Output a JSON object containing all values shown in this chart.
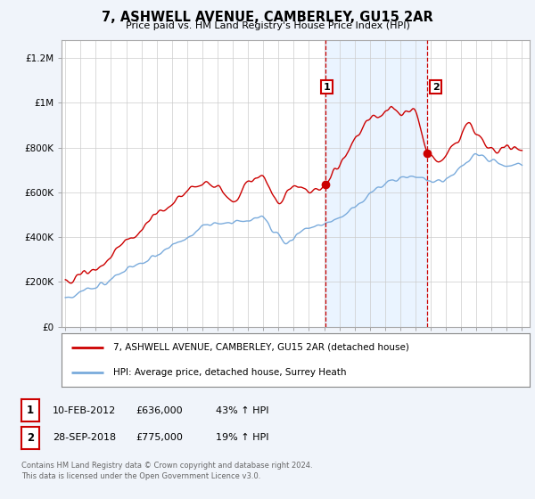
{
  "title": "7, ASHWELL AVENUE, CAMBERLEY, GU15 2AR",
  "subtitle": "Price paid vs. HM Land Registry's House Price Index (HPI)",
  "background_color": "#f0f4fa",
  "plot_bg_color": "#ffffff",
  "ylabel_ticks": [
    "£0",
    "£200K",
    "£400K",
    "£600K",
    "£800K",
    "£1M",
    "£1.2M"
  ],
  "ytick_values": [
    0,
    200000,
    400000,
    600000,
    800000,
    1000000,
    1200000
  ],
  "ylim": [
    0,
    1280000
  ],
  "xlim_start": 1994.75,
  "xlim_end": 2025.5,
  "sale1_x": 2012.11,
  "sale1_y": 636000,
  "sale2_x": 2018.74,
  "sale2_y": 775000,
  "legend_line1": "7, ASHWELL AVENUE, CAMBERLEY, GU15 2AR (detached house)",
  "legend_line2": "HPI: Average price, detached house, Surrey Heath",
  "table_row1": [
    "1",
    "10-FEB-2012",
    "£636,000",
    "43% ↑ HPI"
  ],
  "table_row2": [
    "2",
    "28-SEP-2018",
    "£775,000",
    "19% ↑ HPI"
  ],
  "footer": "Contains HM Land Registry data © Crown copyright and database right 2024.\nThis data is licensed under the Open Government Licence v3.0.",
  "red_color": "#cc0000",
  "blue_color": "#7aabdc",
  "shade_color": "#ddeeff"
}
